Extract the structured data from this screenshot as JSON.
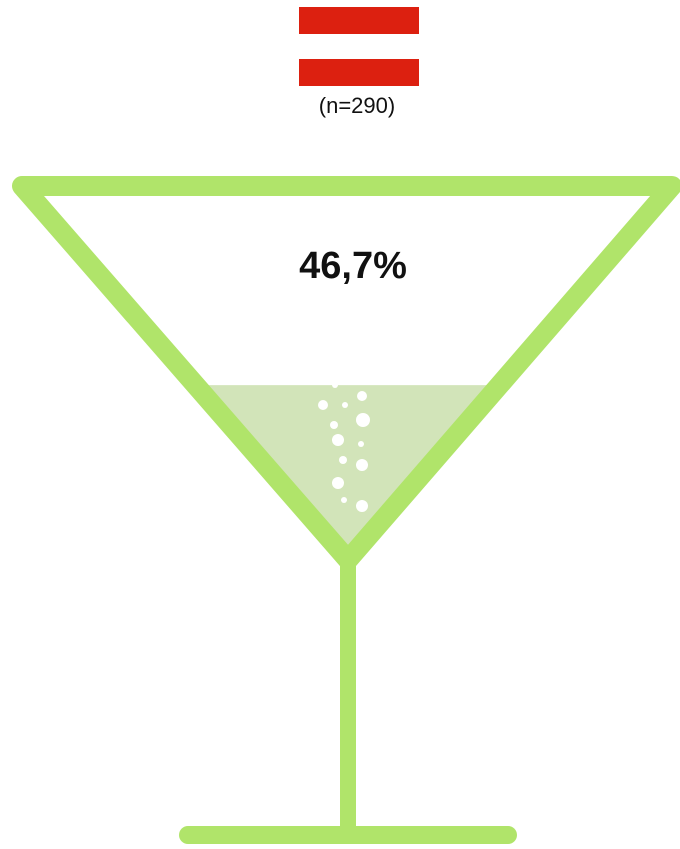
{
  "chart_data": {
    "type": "glass",
    "subtitle": "(n=290)",
    "values": [
      46.7
    ],
    "value_labels": [
      "46,7%"
    ],
    "color": "#b0e46a",
    "fill_color": "#d2e4b9",
    "ylim": [
      0,
      100
    ]
  }
}
